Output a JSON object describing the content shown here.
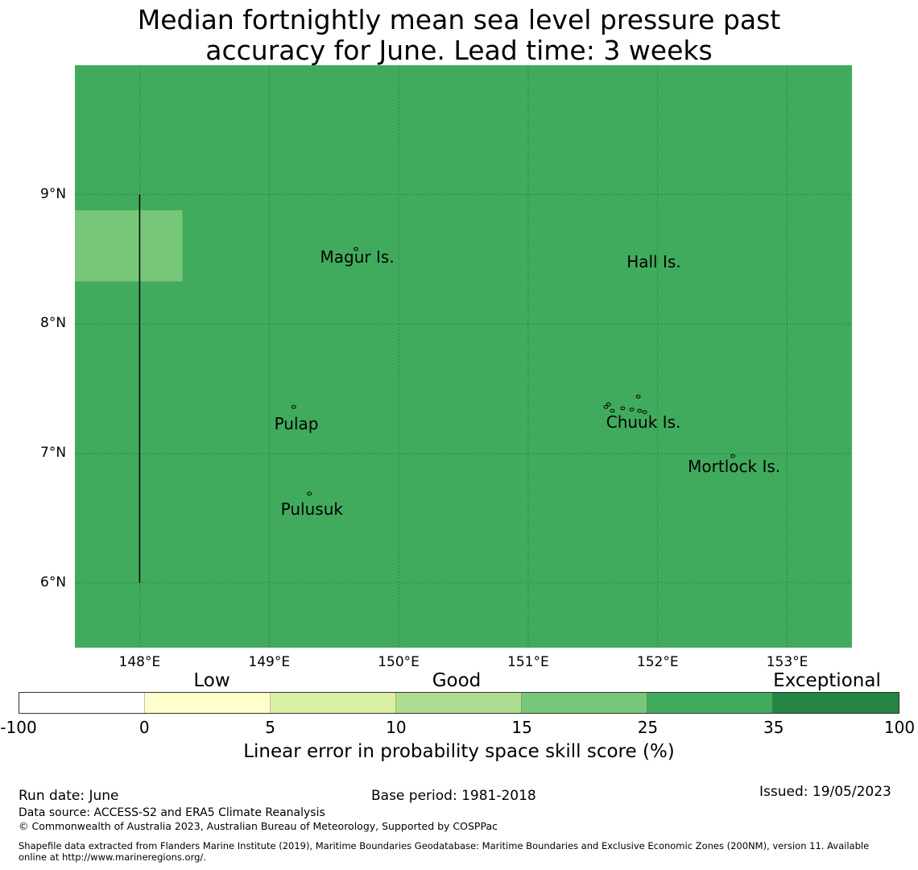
{
  "title": {
    "line1": "Median fortnightly mean sea level pressure past",
    "line2": "accuracy for June. Lead time: 3 weeks"
  },
  "map": {
    "lon_range": [
      147.5,
      153.5
    ],
    "lat_range": [
      5.5,
      10.0
    ],
    "lon_ticks": [
      {
        "value": 148,
        "label": "148°E"
      },
      {
        "value": 149,
        "label": "149°E"
      },
      {
        "value": 150,
        "label": "150°E"
      },
      {
        "value": 151,
        "label": "151°E"
      },
      {
        "value": 152,
        "label": "152°E"
      },
      {
        "value": 153,
        "label": "153°E"
      }
    ],
    "lat_ticks": [
      {
        "value": 9,
        "label": "9°N"
      },
      {
        "value": 8,
        "label": "8°N"
      },
      {
        "value": 7,
        "label": "7°N"
      },
      {
        "value": 6,
        "label": "6°N"
      }
    ],
    "background_color": "#41ab5d",
    "grid": true,
    "cells": [
      {
        "lon_min": 147.5,
        "lon_max": 148.33,
        "lat_min": 8.33,
        "lat_max": 8.88,
        "skill_category": "15-25",
        "color": "#78c679"
      }
    ],
    "boundary_line": {
      "lon": 148,
      "lat_min": 6,
      "lat_max": 9
    },
    "places": [
      {
        "name": "Magur Is.",
        "lon": 149.68,
        "lat": 8.52,
        "islands": [
          [
            149.67,
            8.58
          ]
        ]
      },
      {
        "name": "Hall Is.",
        "lon": 151.97,
        "lat": 8.48,
        "islands": []
      },
      {
        "name": "Pulap",
        "lon": 149.21,
        "lat": 7.23,
        "islands": [
          [
            149.19,
            7.36
          ]
        ]
      },
      {
        "name": "Chuuk Is.",
        "lon": 151.89,
        "lat": 7.24,
        "islands": [
          [
            151.85,
            7.44
          ],
          [
            151.6,
            7.36
          ],
          [
            151.65,
            7.33
          ],
          [
            151.73,
            7.35
          ],
          [
            151.8,
            7.34
          ],
          [
            151.86,
            7.33
          ],
          [
            151.9,
            7.32
          ],
          [
            151.62,
            7.38
          ]
        ]
      },
      {
        "name": "Mortlock Is.",
        "lon": 152.59,
        "lat": 6.9,
        "islands": [
          [
            152.58,
            6.98
          ]
        ]
      },
      {
        "name": "Pulusuk",
        "lon": 149.33,
        "lat": 6.57,
        "islands": [
          [
            149.31,
            6.69
          ]
        ]
      }
    ]
  },
  "colorbar": {
    "segments": [
      {
        "from": -100,
        "to": 0,
        "color": "#ffffff"
      },
      {
        "from": 0,
        "to": 5,
        "color": "#ffffcc"
      },
      {
        "from": 5,
        "to": 10,
        "color": "#d9f0a3"
      },
      {
        "from": 10,
        "to": 15,
        "color": "#addd8e"
      },
      {
        "from": 15,
        "to": 25,
        "color": "#78c679"
      },
      {
        "from": 25,
        "to": 35,
        "color": "#41ab5d"
      },
      {
        "from": 35,
        "to": 100,
        "color": "#238443"
      }
    ],
    "tick_labels": [
      "-100",
      "0",
      "5",
      "10",
      "15",
      "25",
      "35",
      "100"
    ],
    "categories": [
      "Low",
      "Good",
      "Exceptional"
    ],
    "label": "Linear error in probability space skill score (%)"
  },
  "footer": {
    "run_date": "Run date: June",
    "base_period": "Base period: 1981-2018",
    "issued": "Issued: 19/05/2023",
    "data_source": "Data source: ACCESS-S2 and ERA5 Climate Reanalysis",
    "copyright": "© Commonwealth of Australia 2023, Australian Bureau of Meteorology, Supported by COSPPac",
    "shapefile_line1": "Shapefile data extracted from Flanders Marine Institute (2019), Maritime Boundaries Geodatabase: Maritime Boundaries and Exclusive Economic Zones (200NM), version 11. Available",
    "shapefile_line2": "online at http://www.marineregions.org/."
  }
}
